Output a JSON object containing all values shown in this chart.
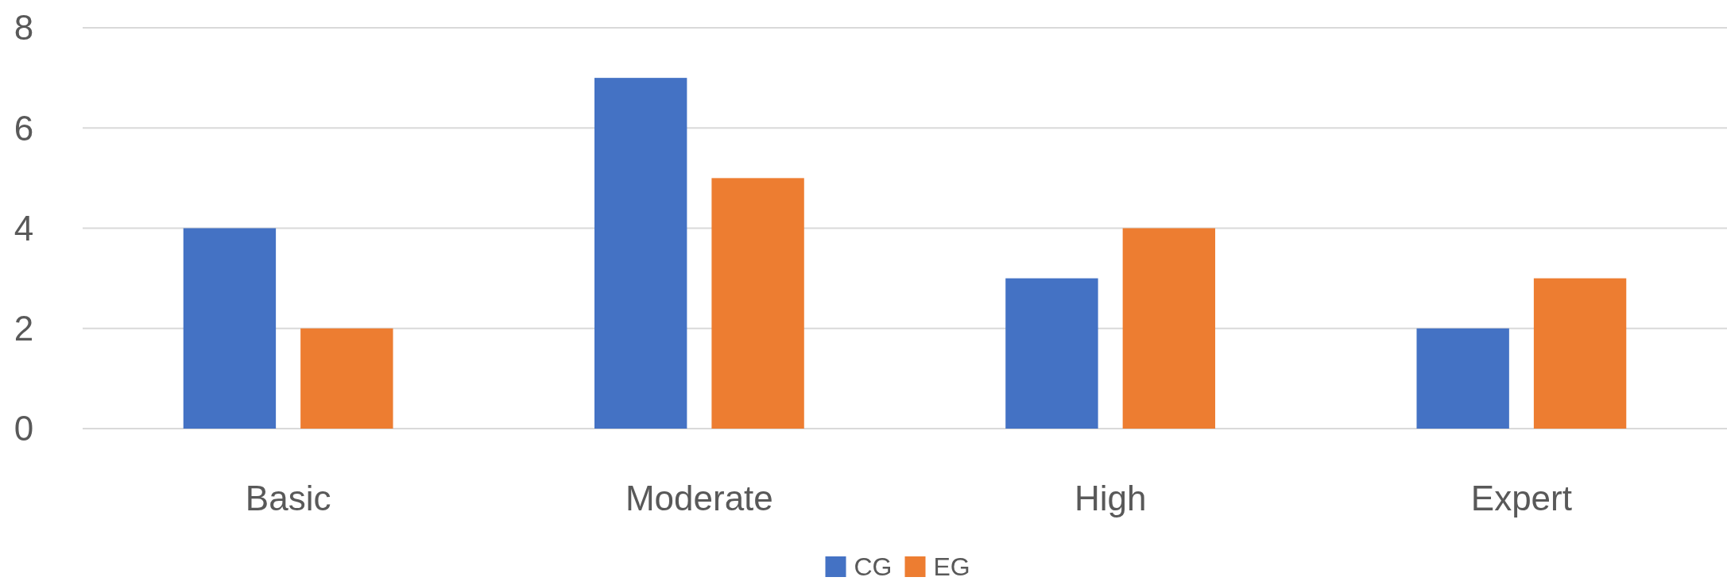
{
  "chart_data": {
    "type": "bar",
    "categories": [
      "Basic",
      "Moderate",
      "High",
      "Expert"
    ],
    "series": [
      {
        "name": "CG",
        "color": "#4472c4",
        "values": [
          4,
          7,
          3,
          2
        ]
      },
      {
        "name": "EG",
        "color": "#ed7d31",
        "values": [
          2,
          5,
          4,
          3
        ]
      }
    ],
    "ylim": [
      0,
      8
    ],
    "yticks": [
      0,
      2,
      4,
      6,
      8
    ],
    "grid": "y",
    "legend": "bottom"
  }
}
